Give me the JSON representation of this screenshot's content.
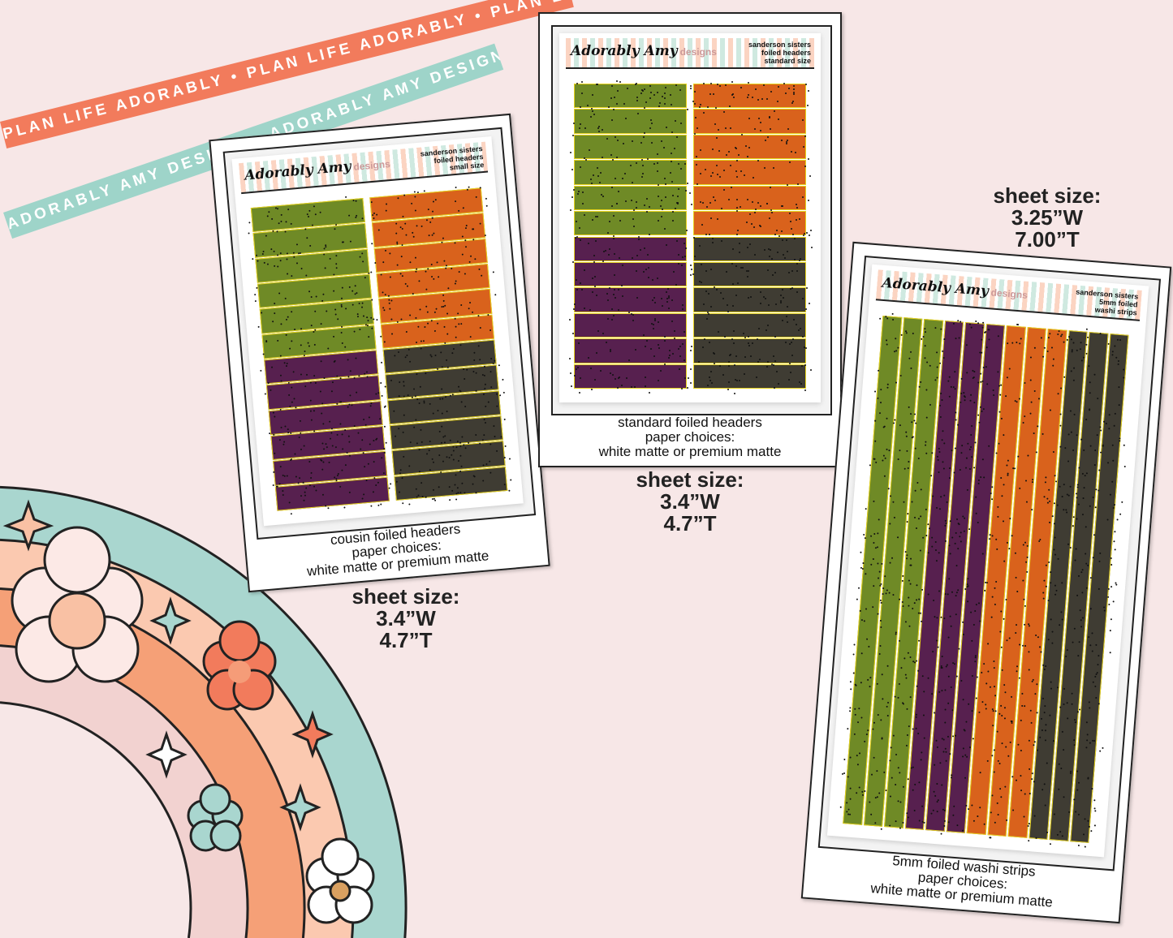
{
  "ribbons": {
    "orange": {
      "text": "PLAN LIFE ADORABLY • PLAN LIFE ADORABLY • PLAN LIFE ADORABLY • PLAN LIFE ADORABLY",
      "color": "#f27b5c"
    },
    "teal": {
      "text": "ADORABLY AMY DESIGNS• ADORABLY AMY DESIGNS• ADORABLY AMY DESIGNS• ADORABLY AMY DESIGNS",
      "color": "#9ed4c9"
    }
  },
  "logo": {
    "script": "Adorably Amy",
    "suffix": "designs"
  },
  "colors": {
    "green": "#6f8a26",
    "orange": "#d9621c",
    "purple": "#57204f",
    "charcoal": "#3f3c33",
    "foil": "#e6d21c"
  },
  "sheets": [
    {
      "id": "cousin",
      "header": [
        "sanderson sisters",
        "foiled headers",
        "small size"
      ],
      "caption": [
        "cousin foiled headers",
        "paper choices:",
        "white matte or premium matte"
      ],
      "size": [
        "sheet size:",
        "3.4”W",
        "4.7”T"
      ]
    },
    {
      "id": "standard",
      "header": [
        "sanderson sisters",
        "foiled headers",
        "standard size"
      ],
      "caption": [
        "standard foiled headers",
        "paper choices:",
        "white matte or premium matte"
      ],
      "size": [
        "sheet size:",
        "3.4”W",
        "4.7”T"
      ]
    },
    {
      "id": "washi",
      "header": [
        "sanderson sisters",
        "5mm foiled",
        "washi strips"
      ],
      "caption": [
        "5mm foiled washi strips",
        "paper choices:",
        "white matte or premium matte"
      ],
      "size": [
        "sheet size:",
        "3.25”W",
        "7.00”T"
      ]
    }
  ]
}
